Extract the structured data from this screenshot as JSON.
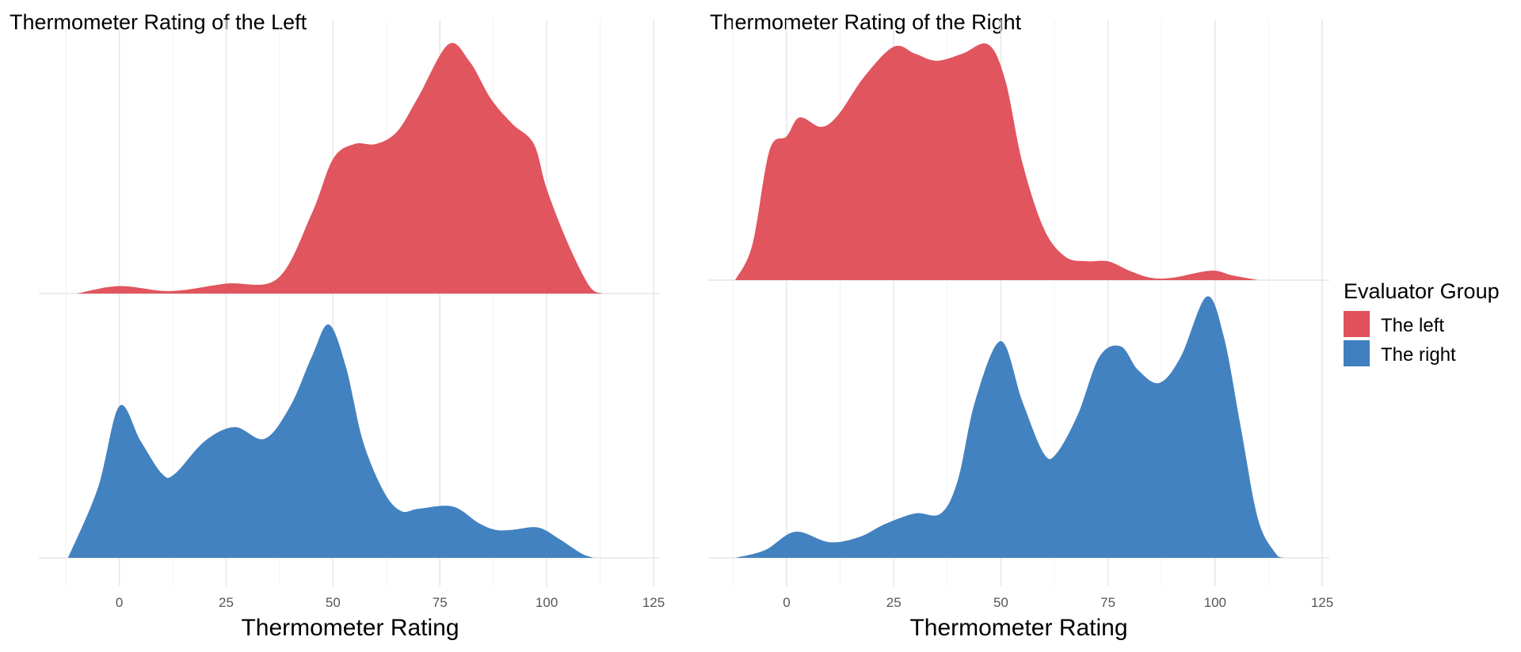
{
  "chart_data": [
    {
      "type": "area",
      "subtype": "ridgeline-density",
      "title": "Thermometer Rating of the Left",
      "xlabel": "Thermometer Rating",
      "ylabel": "",
      "xlim": [
        -15,
        130
      ],
      "xticks": [
        "0",
        "25",
        "50",
        "75",
        "100",
        "125"
      ],
      "grid": true,
      "density_units": "relative (peak = 1)",
      "series": [
        {
          "name": "The left",
          "color": "#E0525B",
          "x": [
            -10,
            0,
            12,
            25,
            37,
            45,
            50,
            55,
            60,
            65,
            70,
            77,
            82,
            87,
            92,
            97,
            100,
            105,
            110,
            113
          ],
          "y": [
            0,
            0.03,
            0.01,
            0.04,
            0.06,
            0.32,
            0.54,
            0.6,
            0.6,
            0.65,
            0.79,
            1.0,
            0.93,
            0.78,
            0.68,
            0.6,
            0.42,
            0.2,
            0.03,
            0
          ]
        },
        {
          "name": "The right",
          "color": "#3F7FBF",
          "x": [
            -12,
            -5,
            0,
            5,
            10,
            13,
            20,
            27,
            34,
            40,
            45,
            49,
            53,
            57,
            62,
            66,
            70,
            78,
            84,
            88,
            92,
            98,
            103,
            108,
            111
          ],
          "y": [
            0,
            0.3,
            0.65,
            0.5,
            0.36,
            0.36,
            0.5,
            0.56,
            0.51,
            0.65,
            0.86,
            1.0,
            0.82,
            0.5,
            0.28,
            0.2,
            0.21,
            0.22,
            0.15,
            0.12,
            0.12,
            0.13,
            0.08,
            0.02,
            0
          ]
        }
      ]
    },
    {
      "type": "area",
      "subtype": "ridgeline-density",
      "title": "Thermometer Rating of the Right",
      "xlabel": "Thermometer Rating",
      "ylabel": "",
      "xlim": [
        -15,
        130
      ],
      "xticks": [
        "0",
        "25",
        "50",
        "75",
        "100",
        "125"
      ],
      "grid": true,
      "density_units": "relative (peak = 1)",
      "series": [
        {
          "name": "The left",
          "color": "#E0525B",
          "x": [
            -12,
            -8,
            -4,
            0,
            3,
            8,
            12,
            18,
            25,
            30,
            35,
            41,
            47,
            51,
            55,
            60,
            65,
            70,
            75,
            80,
            85,
            90,
            99,
            104,
            110
          ],
          "y": [
            0,
            0.15,
            0.55,
            0.61,
            0.69,
            0.65,
            0.7,
            0.86,
            0.99,
            0.96,
            0.93,
            0.96,
            1.0,
            0.85,
            0.5,
            0.22,
            0.1,
            0.08,
            0.08,
            0.04,
            0.01,
            0.01,
            0.04,
            0.02,
            0
          ]
        },
        {
          "name": "The right",
          "color": "#3F7FBF",
          "x": [
            -12,
            -5,
            2,
            10,
            17,
            23,
            30,
            36,
            40,
            44,
            50,
            55,
            60,
            63,
            68,
            73,
            78,
            82,
            87,
            92,
            98,
            102,
            106,
            110,
            114,
            116
          ],
          "y": [
            0,
            0.03,
            0.1,
            0.06,
            0.08,
            0.13,
            0.17,
            0.17,
            0.3,
            0.6,
            0.83,
            0.6,
            0.4,
            0.4,
            0.55,
            0.77,
            0.81,
            0.72,
            0.67,
            0.77,
            1.0,
            0.85,
            0.5,
            0.15,
            0.02,
            0
          ]
        }
      ]
    }
  ],
  "legend": {
    "title": "Evaluator Group",
    "placement": "right",
    "items": [
      {
        "label": "The left",
        "color": "#E0525B"
      },
      {
        "label": "The right",
        "color": "#3F7FBF"
      }
    ]
  }
}
